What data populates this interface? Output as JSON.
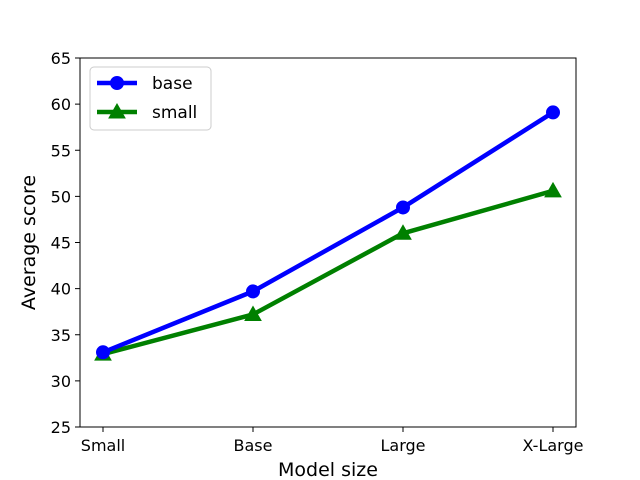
{
  "chart_data": {
    "type": "line",
    "title": "",
    "xlabel": "Model size",
    "ylabel": "Average score",
    "categories": [
      "Small",
      "Base",
      "Large",
      "X-Large"
    ],
    "ylim": [
      25,
      65
    ],
    "yticks": [
      25,
      30,
      35,
      40,
      45,
      50,
      55,
      60,
      65
    ],
    "grid": false,
    "legend_position": "top-left",
    "series": [
      {
        "name": "base",
        "values": [
          33.1,
          39.7,
          48.8,
          59.1
        ],
        "color": "#0000ff",
        "marker": "circle"
      },
      {
        "name": "small",
        "values": [
          32.9,
          37.2,
          46.0,
          50.6
        ],
        "color": "#008000",
        "marker": "triangle"
      }
    ]
  }
}
